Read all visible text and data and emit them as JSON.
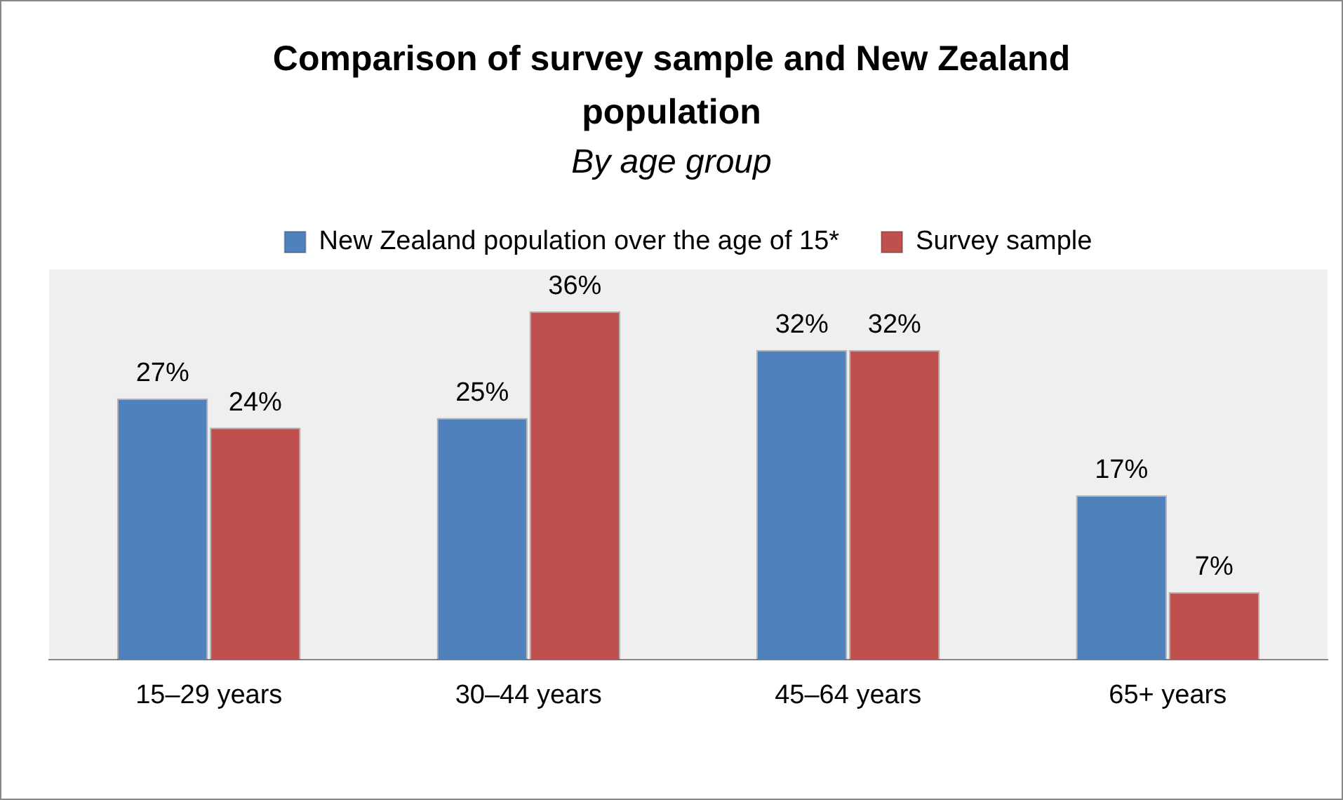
{
  "chart_data": {
    "type": "bar",
    "title": "Comparison of survey sample and New Zealand population",
    "subtitle": "By age group",
    "categories": [
      "15–29 years",
      "30–44 years",
      "45–64 years",
      "65+ years"
    ],
    "series": [
      {
        "name": "New Zealand population over the age of 15*",
        "color": "#4f81bd",
        "values": [
          27,
          25,
          32,
          17
        ],
        "value_labels": [
          "27%",
          "25%",
          "32%",
          "17%"
        ]
      },
      {
        "name": "Survey sample",
        "color": "#c0504d",
        "values": [
          24,
          36,
          32,
          7
        ],
        "value_labels": [
          "24%",
          "36%",
          "32%",
          "7%"
        ]
      }
    ],
    "legend": "top",
    "grid": false
  }
}
